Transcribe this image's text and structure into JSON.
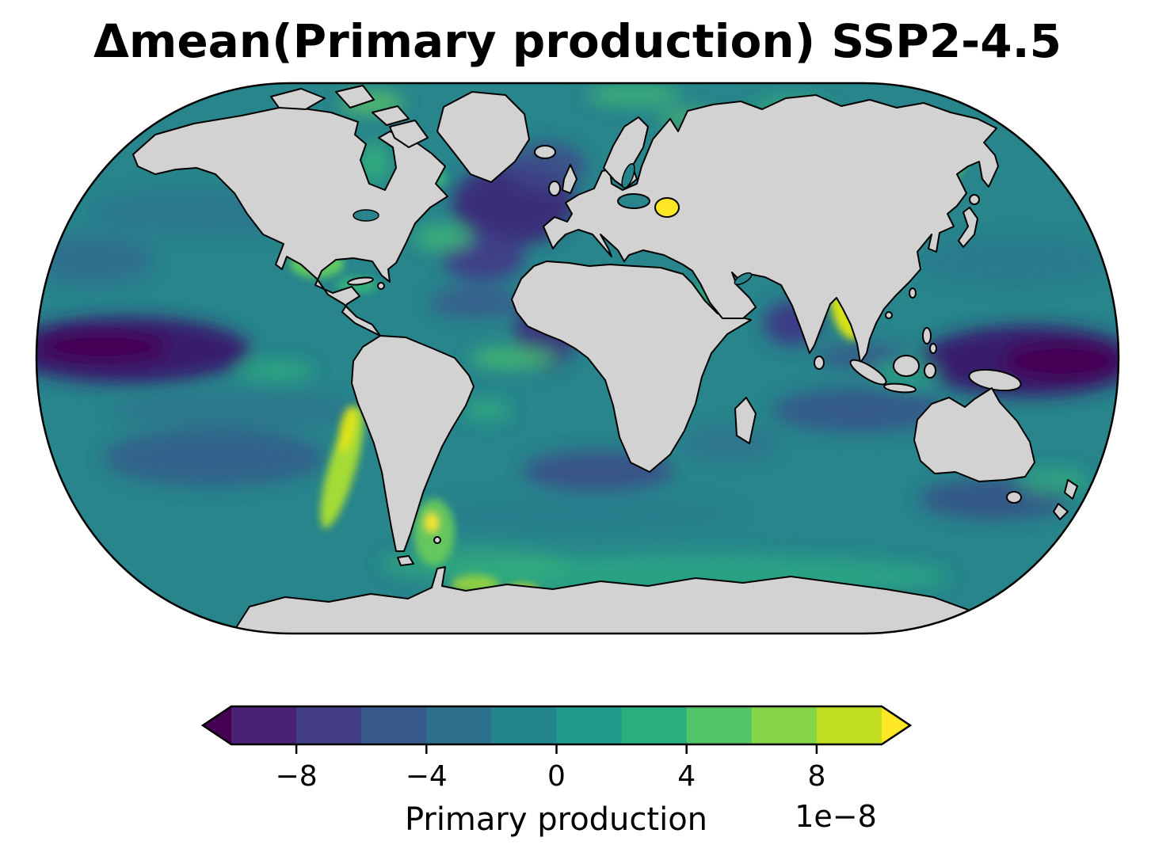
{
  "chart_data": {
    "type": "heatmap",
    "title": "Δmean(Primary production) SSP2-4.5",
    "statistic": "Δmean",
    "variable": "Primary production",
    "scenario": "SSP2-4.5",
    "projection": "Robinson",
    "colormap": "viridis",
    "land_color": "#d3d3d3",
    "coastline_color": "#000000",
    "ocean_base_color": "#27858b",
    "colorbar": {
      "orientation": "horizontal",
      "label": "Primary production",
      "scale_text": "1e−8",
      "ticks": [
        -8,
        -4,
        0,
        4,
        8
      ],
      "tick_labels": [
        "−8",
        "−4",
        "0",
        "4",
        "8"
      ],
      "range": [
        -10,
        10
      ],
      "extend": "both",
      "segment_colors": [
        "#482173",
        "#433e85",
        "#38598c",
        "#2d708e",
        "#25858e",
        "#1e9b8a",
        "#2ab07f",
        "#52c569",
        "#86d549",
        "#c2df23"
      ],
      "under_color": "#440154",
      "over_color": "#fde725"
    },
    "ocean_anomaly_summary": [
      {
        "region": "Equatorial Pacific (both map edges)",
        "signal": "strong negative (dark purple)"
      },
      {
        "region": "North Atlantic subpolar gyre",
        "signal": "strong negative (dark purple)"
      },
      {
        "region": "Eastern tropical Atlantic off West Africa",
        "signal": "strong negative"
      },
      {
        "region": "Arabian Sea",
        "signal": "negative"
      },
      {
        "region": "Peru–Chile (Humboldt) coastal upwelling",
        "signal": "strong positive (yellow-green streak)"
      },
      {
        "region": "Bay of Bengal and coast of India",
        "signal": "strong positive (yellow)"
      },
      {
        "region": "Caspian Sea",
        "signal": "strong positive (yellow)"
      },
      {
        "region": "Patagonian shelf / Falklands",
        "signal": "strong positive (yellow spot)"
      },
      {
        "region": "Kuril / Kamchatka coast",
        "signal": "positive (green)"
      },
      {
        "region": "Gulf of Mexico and Caribbean",
        "signal": "positive (green)"
      },
      {
        "region": "Southern Ocean",
        "signal": "mildly positive green patches"
      },
      {
        "region": "Subtropical gyres and mid-latitude bands",
        "signal": "weak negative (blue-teal)"
      }
    ]
  }
}
